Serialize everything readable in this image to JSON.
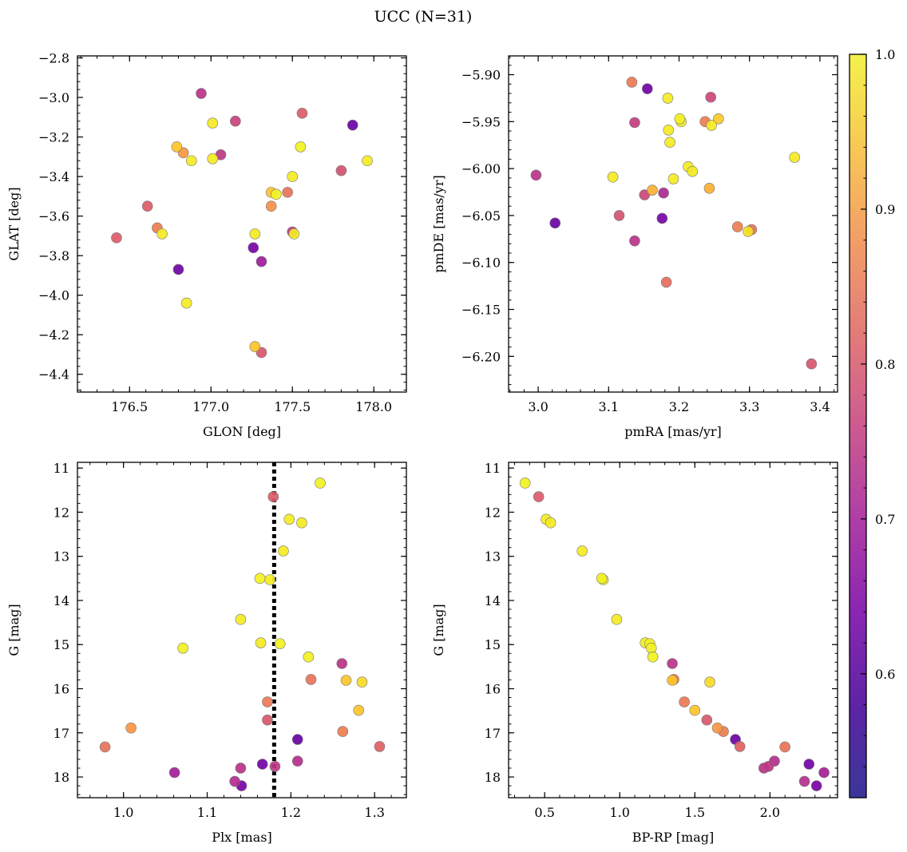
{
  "figure": {
    "title": "UCC (N=31)"
  },
  "colorbar": {
    "min": 0.52,
    "max": 1.0,
    "ticks": [
      0.6,
      0.7,
      0.8,
      0.9,
      1.0
    ],
    "tick_labels": [
      "0.6",
      "0.7",
      "0.8",
      "0.9",
      "1.0"
    ],
    "colormap": "plasma"
  },
  "colors": {
    "axis": "#000000",
    "marker_edge": "#777777",
    "vline": "#000000"
  },
  "chart_data": [
    {
      "type": "scatter",
      "xlabel": "GLON [deg]",
      "ylabel": "GLAT [deg]",
      "xlim": [
        176.18,
        178.2
      ],
      "ylim": [
        -4.49,
        -2.79
      ],
      "x_ticks": [
        176.5,
        177.0,
        177.5,
        178.0
      ],
      "x_tick_labels": [
        "176.5",
        "177.0",
        "177.5",
        "178.0"
      ],
      "y_ticks": [
        -2.8,
        -3.0,
        -3.2,
        -3.4,
        -3.6,
        -3.8,
        -4.0,
        -4.2,
        -4.4
      ],
      "y_tick_labels": [
        "−2.8",
        "−3.0",
        "−3.2",
        "−3.4",
        "−3.6",
        "−3.8",
        "−4.0",
        "−4.2",
        "−4.4"
      ],
      "points": [
        {
          "x": 176.94,
          "y": -2.98,
          "c": 0.68
        },
        {
          "x": 177.01,
          "y": -3.13,
          "c": 0.98
        },
        {
          "x": 177.15,
          "y": -3.12,
          "c": 0.71
        },
        {
          "x": 177.56,
          "y": -3.08,
          "c": 0.76
        },
        {
          "x": 177.87,
          "y": -3.14,
          "c": 0.55
        },
        {
          "x": 176.79,
          "y": -3.25,
          "c": 0.93
        },
        {
          "x": 176.83,
          "y": -3.28,
          "c": 0.86
        },
        {
          "x": 176.88,
          "y": -3.32,
          "c": 0.98
        },
        {
          "x": 177.01,
          "y": -3.31,
          "c": 0.98
        },
        {
          "x": 177.06,
          "y": -3.29,
          "c": 0.69
        },
        {
          "x": 177.55,
          "y": -3.25,
          "c": 0.99
        },
        {
          "x": 177.5,
          "y": -3.4,
          "c": 0.98
        },
        {
          "x": 177.8,
          "y": -3.37,
          "c": 0.74
        },
        {
          "x": 177.96,
          "y": -3.32,
          "c": 0.98
        },
        {
          "x": 177.37,
          "y": -3.48,
          "c": 0.93
        },
        {
          "x": 177.4,
          "y": -3.49,
          "c": 0.99
        },
        {
          "x": 177.47,
          "y": -3.48,
          "c": 0.8
        },
        {
          "x": 177.37,
          "y": -3.55,
          "c": 0.85
        },
        {
          "x": 176.61,
          "y": -3.55,
          "c": 0.76
        },
        {
          "x": 176.67,
          "y": -3.66,
          "c": 0.82
        },
        {
          "x": 176.7,
          "y": -3.69,
          "c": 0.98
        },
        {
          "x": 176.42,
          "y": -3.71,
          "c": 0.76
        },
        {
          "x": 177.27,
          "y": -3.69,
          "c": 0.98
        },
        {
          "x": 177.5,
          "y": -3.68,
          "c": 0.7
        },
        {
          "x": 177.51,
          "y": -3.69,
          "c": 0.98
        },
        {
          "x": 177.26,
          "y": -3.76,
          "c": 0.57
        },
        {
          "x": 177.31,
          "y": -3.83,
          "c": 0.63
        },
        {
          "x": 176.8,
          "y": -3.87,
          "c": 0.56
        },
        {
          "x": 176.85,
          "y": -4.04,
          "c": 0.98
        },
        {
          "x": 177.27,
          "y": -4.26,
          "c": 0.93
        },
        {
          "x": 177.31,
          "y": -4.29,
          "c": 0.75
        }
      ]
    },
    {
      "type": "scatter",
      "xlabel": "pmRA [mas/yr]",
      "ylabel": "pmDE [mas/yr]",
      "xlim": [
        2.958,
        3.425
      ],
      "ylim": [
        -6.238,
        -5.88
      ],
      "x_ticks": [
        3.0,
        3.1,
        3.2,
        3.3,
        3.4
      ],
      "x_tick_labels": [
        "3.0",
        "3.1",
        "3.2",
        "3.3",
        "3.4"
      ],
      "y_ticks": [
        -5.9,
        -5.95,
        -6.0,
        -6.05,
        -6.1,
        -6.15,
        -6.2
      ],
      "y_tick_labels": [
        "−5.90",
        "−5.95",
        "−6.00",
        "−6.05",
        "−6.10",
        "−6.15",
        "−6.20"
      ],
      "points": [
        {
          "x": 3.133,
          "y": -5.908,
          "c": 0.81
        },
        {
          "x": 3.155,
          "y": -5.915,
          "c": 0.56
        },
        {
          "x": 3.184,
          "y": -5.925,
          "c": 0.98
        },
        {
          "x": 3.245,
          "y": -5.924,
          "c": 0.72
        },
        {
          "x": 3.137,
          "y": -5.951,
          "c": 0.7
        },
        {
          "x": 3.201,
          "y": -5.947,
          "c": 0.99
        },
        {
          "x": 3.203,
          "y": -5.95,
          "c": 0.98
        },
        {
          "x": 3.237,
          "y": -5.95,
          "c": 0.82
        },
        {
          "x": 3.246,
          "y": -5.954,
          "c": 0.98
        },
        {
          "x": 3.256,
          "y": -5.947,
          "c": 0.94
        },
        {
          "x": 3.185,
          "y": -5.959,
          "c": 0.98
        },
        {
          "x": 3.187,
          "y": -5.972,
          "c": 0.98
        },
        {
          "x": 3.364,
          "y": -5.988,
          "c": 0.98
        },
        {
          "x": 3.213,
          "y": -5.998,
          "c": 0.98
        },
        {
          "x": 3.219,
          "y": -6.003,
          "c": 0.98
        },
        {
          "x": 2.997,
          "y": -6.007,
          "c": 0.68
        },
        {
          "x": 3.106,
          "y": -6.009,
          "c": 0.98
        },
        {
          "x": 3.192,
          "y": -6.011,
          "c": 0.98
        },
        {
          "x": 3.162,
          "y": -6.023,
          "c": 0.9
        },
        {
          "x": 3.243,
          "y": -6.021,
          "c": 0.9
        },
        {
          "x": 3.151,
          "y": -6.028,
          "c": 0.72
        },
        {
          "x": 3.178,
          "y": -6.026,
          "c": 0.66
        },
        {
          "x": 3.115,
          "y": -6.05,
          "c": 0.74
        },
        {
          "x": 3.176,
          "y": -6.053,
          "c": 0.57
        },
        {
          "x": 3.024,
          "y": -6.058,
          "c": 0.55
        },
        {
          "x": 3.283,
          "y": -6.062,
          "c": 0.82
        },
        {
          "x": 3.303,
          "y": -6.065,
          "c": 0.8
        },
        {
          "x": 3.298,
          "y": -6.067,
          "c": 0.97
        },
        {
          "x": 3.137,
          "y": -6.077,
          "c": 0.68
        },
        {
          "x": 3.182,
          "y": -6.121,
          "c": 0.79
        },
        {
          "x": 3.388,
          "y": -6.208,
          "c": 0.75
        }
      ]
    },
    {
      "type": "scatter",
      "xlabel": "Plx [mas]",
      "ylabel": "G [mag]",
      "xlim": [
        0.945,
        1.338
      ],
      "ylim": [
        18.47,
        10.87
      ],
      "y_inverted": true,
      "vline_x": 1.18,
      "x_ticks": [
        1.0,
        1.1,
        1.2,
        1.3
      ],
      "x_tick_labels": [
        "1.0",
        "1.1",
        "1.2",
        "1.3"
      ],
      "y_ticks": [
        11,
        12,
        13,
        14,
        15,
        16,
        17,
        18
      ],
      "y_tick_labels": [
        "11",
        "12",
        "13",
        "14",
        "15",
        "16",
        "17",
        "18"
      ],
      "points": [
        {
          "x": 1.235,
          "y": 11.34,
          "c": 0.99
        },
        {
          "x": 1.179,
          "y": 11.65,
          "c": 0.76
        },
        {
          "x": 1.198,
          "y": 12.16,
          "c": 0.98
        },
        {
          "x": 1.213,
          "y": 12.24,
          "c": 0.98
        },
        {
          "x": 1.191,
          "y": 12.88,
          "c": 0.98
        },
        {
          "x": 1.163,
          "y": 13.5,
          "c": 0.99
        },
        {
          "x": 1.175,
          "y": 13.53,
          "c": 0.98
        },
        {
          "x": 1.14,
          "y": 14.43,
          "c": 0.98
        },
        {
          "x": 1.071,
          "y": 15.08,
          "c": 0.99
        },
        {
          "x": 1.164,
          "y": 14.96,
          "c": 0.98
        },
        {
          "x": 1.187,
          "y": 14.98,
          "c": 0.99
        },
        {
          "x": 1.221,
          "y": 15.28,
          "c": 0.99
        },
        {
          "x": 1.261,
          "y": 15.43,
          "c": 0.68
        },
        {
          "x": 1.224,
          "y": 15.79,
          "c": 0.8
        },
        {
          "x": 1.266,
          "y": 15.81,
          "c": 0.93
        },
        {
          "x": 1.285,
          "y": 15.85,
          "c": 0.96
        },
        {
          "x": 1.172,
          "y": 16.3,
          "c": 0.81
        },
        {
          "x": 1.281,
          "y": 16.49,
          "c": 0.93
        },
        {
          "x": 1.172,
          "y": 16.71,
          "c": 0.75
        },
        {
          "x": 1.009,
          "y": 16.89,
          "c": 0.86
        },
        {
          "x": 1.262,
          "y": 16.97,
          "c": 0.82
        },
        {
          "x": 1.208,
          "y": 17.15,
          "c": 0.55
        },
        {
          "x": 0.978,
          "y": 17.32,
          "c": 0.8
        },
        {
          "x": 1.306,
          "y": 17.31,
          "c": 0.77
        },
        {
          "x": 1.208,
          "y": 17.64,
          "c": 0.67
        },
        {
          "x": 1.166,
          "y": 17.71,
          "c": 0.56
        },
        {
          "x": 1.181,
          "y": 17.76,
          "c": 0.69
        },
        {
          "x": 1.14,
          "y": 17.8,
          "c": 0.68
        },
        {
          "x": 1.061,
          "y": 17.9,
          "c": 0.64
        },
        {
          "x": 1.133,
          "y": 18.1,
          "c": 0.67
        },
        {
          "x": 1.141,
          "y": 18.2,
          "c": 0.57
        }
      ]
    },
    {
      "type": "scatter",
      "xlabel": "BP-RP [mag]",
      "ylabel": "G [mag]",
      "xlim": [
        0.26,
        2.45
      ],
      "ylim": [
        18.47,
        10.87
      ],
      "y_inverted": true,
      "x_ticks": [
        0.5,
        1.0,
        1.5,
        2.0
      ],
      "x_tick_labels": [
        "0.5",
        "1.0",
        "1.5",
        "2.0"
      ],
      "y_ticks": [
        11,
        12,
        13,
        14,
        15,
        16,
        17,
        18
      ],
      "y_tick_labels": [
        "11",
        "12",
        "13",
        "14",
        "15",
        "16",
        "17",
        "18"
      ],
      "points": [
        {
          "x": 0.37,
          "y": 11.34,
          "c": 0.99
        },
        {
          "x": 0.46,
          "y": 11.65,
          "c": 0.76
        },
        {
          "x": 0.51,
          "y": 12.16,
          "c": 0.98
        },
        {
          "x": 0.54,
          "y": 12.24,
          "c": 0.98
        },
        {
          "x": 0.75,
          "y": 12.88,
          "c": 0.98
        },
        {
          "x": 0.88,
          "y": 13.5,
          "c": 0.99
        },
        {
          "x": 0.89,
          "y": 13.53,
          "c": 0.98
        },
        {
          "x": 0.98,
          "y": 14.43,
          "c": 0.98
        },
        {
          "x": 1.17,
          "y": 14.96,
          "c": 0.98
        },
        {
          "x": 1.2,
          "y": 14.98,
          "c": 0.99
        },
        {
          "x": 1.21,
          "y": 15.08,
          "c": 0.99
        },
        {
          "x": 1.22,
          "y": 15.28,
          "c": 0.99
        },
        {
          "x": 1.35,
          "y": 15.43,
          "c": 0.68
        },
        {
          "x": 1.36,
          "y": 15.79,
          "c": 0.8
        },
        {
          "x": 1.35,
          "y": 15.81,
          "c": 0.93
        },
        {
          "x": 1.6,
          "y": 15.85,
          "c": 0.96
        },
        {
          "x": 1.43,
          "y": 16.3,
          "c": 0.81
        },
        {
          "x": 1.5,
          "y": 16.49,
          "c": 0.93
        },
        {
          "x": 1.58,
          "y": 16.71,
          "c": 0.75
        },
        {
          "x": 1.65,
          "y": 16.89,
          "c": 0.86
        },
        {
          "x": 1.69,
          "y": 16.97,
          "c": 0.82
        },
        {
          "x": 1.77,
          "y": 17.15,
          "c": 0.55
        },
        {
          "x": 1.8,
          "y": 17.31,
          "c": 0.77
        },
        {
          "x": 2.1,
          "y": 17.32,
          "c": 0.8
        },
        {
          "x": 2.03,
          "y": 17.64,
          "c": 0.67
        },
        {
          "x": 2.26,
          "y": 17.71,
          "c": 0.56
        },
        {
          "x": 1.99,
          "y": 17.76,
          "c": 0.69
        },
        {
          "x": 1.96,
          "y": 17.8,
          "c": 0.68
        },
        {
          "x": 2.36,
          "y": 17.9,
          "c": 0.64
        },
        {
          "x": 2.23,
          "y": 18.1,
          "c": 0.67
        },
        {
          "x": 2.31,
          "y": 18.2,
          "c": 0.57
        }
      ]
    }
  ]
}
